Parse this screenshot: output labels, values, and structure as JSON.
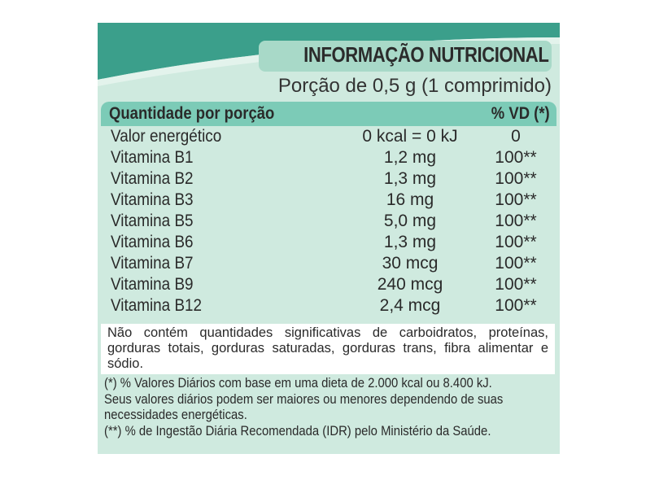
{
  "colors": {
    "dark_teal": "#3b9f8b",
    "header_teal": "#7ccbb7",
    "background": "#cfeadf"
  },
  "title": "INFORMAÇÃO NUTRICIONAL",
  "portion": "Porção de 0,5 g (1 comprimido)",
  "header": {
    "left": "Quantidade por porção",
    "right": "% VD (*)"
  },
  "rows": [
    {
      "name": "Valor energético",
      "amount": "0 kcal = 0 kJ",
      "vd": "0"
    },
    {
      "name": "Vitamina B1",
      "amount": "1,2 mg",
      "vd": "100**"
    },
    {
      "name": "Vitamina B2",
      "amount": "1,3 mg",
      "vd": "100**"
    },
    {
      "name": "Vitamina B3",
      "amount": "16 mg",
      "vd": "100**"
    },
    {
      "name": "Vitamina B5",
      "amount": "5,0 mg",
      "vd": "100**"
    },
    {
      "name": "Vitamina B6",
      "amount": "1,3 mg",
      "vd": "100**"
    },
    {
      "name": "Vitamina B7",
      "amount": "30 mcg",
      "vd": "100**"
    },
    {
      "name": "Vitamina B9",
      "amount": "240 mcg",
      "vd": "100**"
    },
    {
      "name": "Vitamina B12",
      "amount": "2,4 mcg",
      "vd": "100**"
    }
  ],
  "note": "Não contém quantidades significativas de carboidratos, proteínas, gorduras totais, gorduras saturadas, gorduras trans, fibra alimentar e sódio.",
  "footnotes": [
    "(*) % Valores Diários com base em uma dieta de 2.000 kcal ou 8.400 kJ.",
    "Seus valores diários podem ser maiores ou menores dependendo de suas",
    "necessidades energéticas.",
    "(**) % de Ingestão Diária Recomendada (IDR) pelo Ministério da Saúde."
  ]
}
